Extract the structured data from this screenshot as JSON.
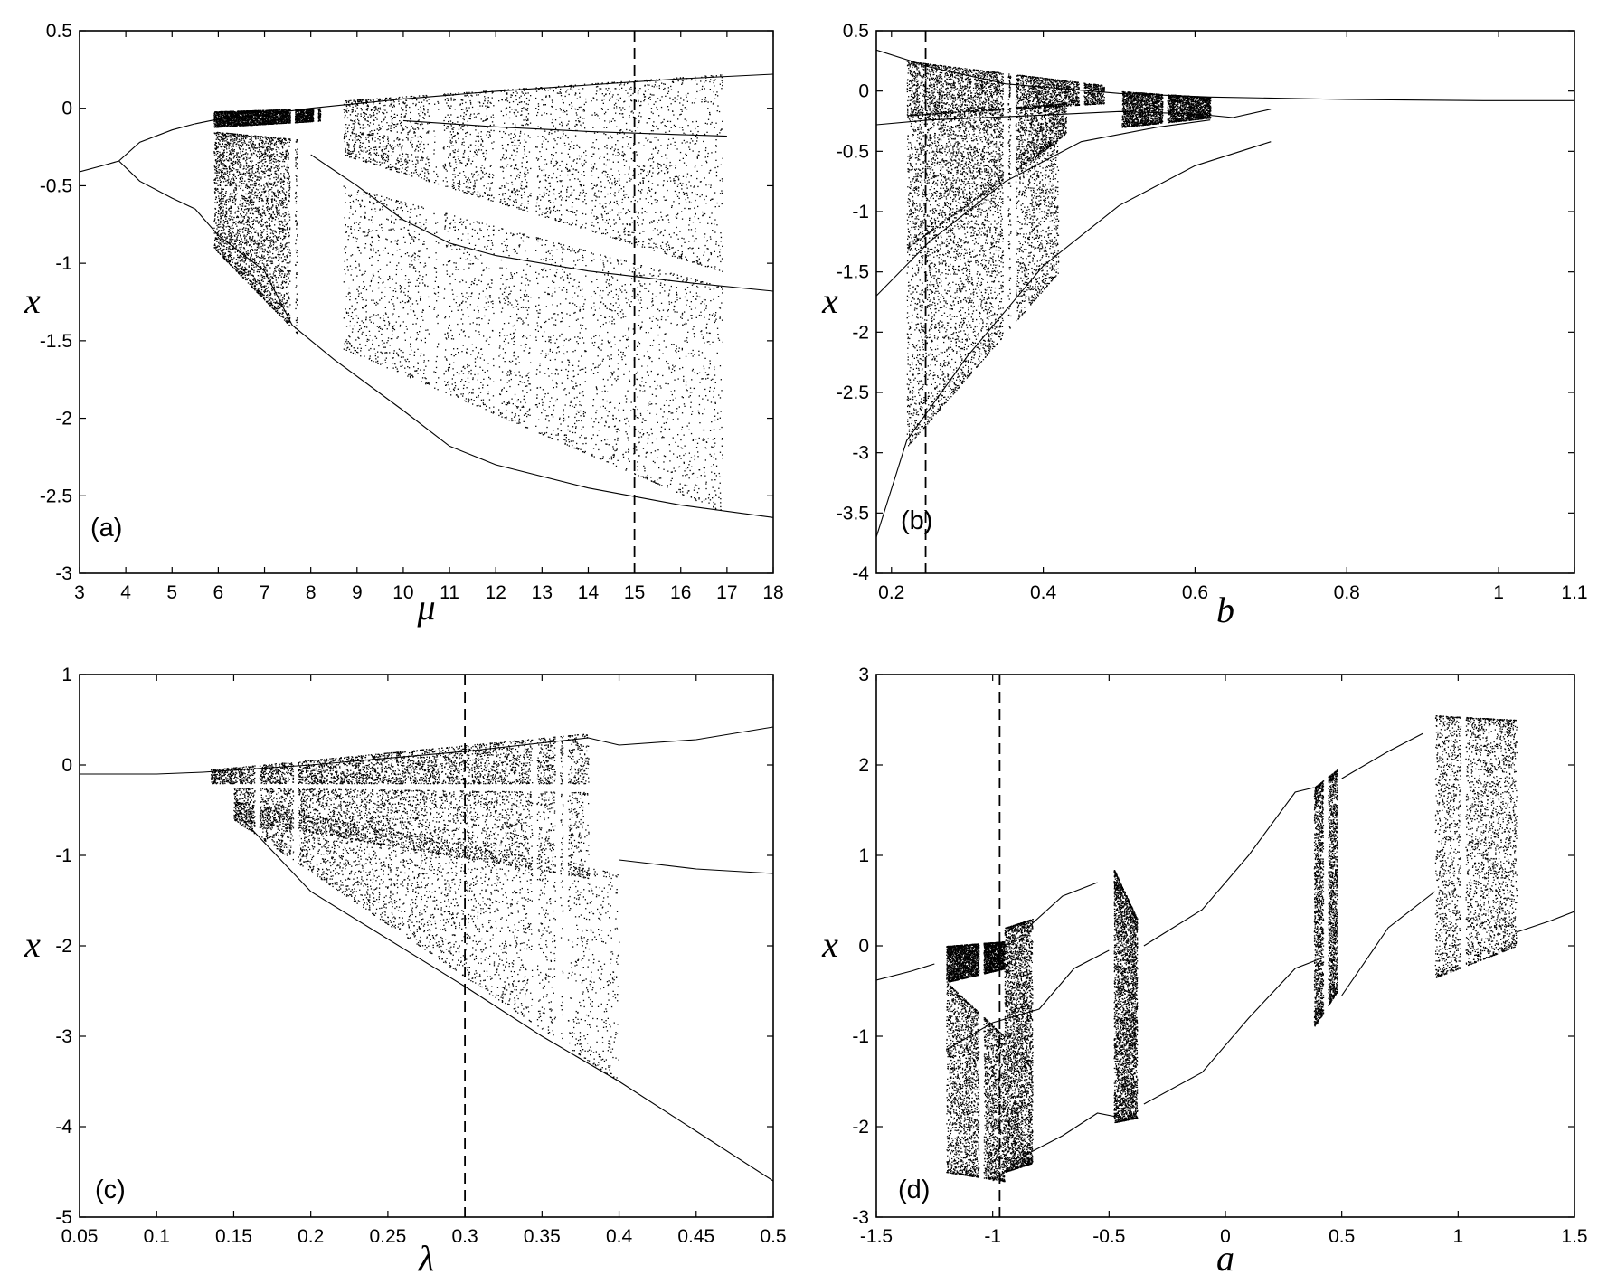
{
  "chart_data": [
    {
      "id": "a",
      "type": "scatter",
      "panel_label": "(a)",
      "xlabel": "μ",
      "ylabel": "x",
      "xlim": [
        3,
        18
      ],
      "ylim": [
        -3,
        0.5
      ],
      "xticks": [
        3,
        4,
        5,
        6,
        7,
        8,
        9,
        10,
        11,
        12,
        13,
        14,
        15,
        16,
        17,
        18
      ],
      "yticks": [
        0.5,
        0,
        -0.5,
        -1,
        -1.5,
        -2,
        -2.5,
        -3
      ],
      "xtick_labels": [
        "3",
        "4",
        "5",
        "6",
        "7",
        "8",
        "9",
        "10",
        "11",
        "12",
        "13",
        "14",
        "15",
        "16",
        "17",
        "18"
      ],
      "ytick_labels": [
        "0.5",
        "0",
        "-0.5",
        "-1",
        "-1.5",
        "-2",
        "-2.5",
        "-3"
      ],
      "dashed_line_x": 15,
      "chaos_range": [
        5.9,
        16.9
      ],
      "branches": [
        [
          [
            3,
            -0.41
          ],
          [
            3.5,
            -0.37
          ],
          [
            3.85,
            -0.34
          ]
        ],
        [
          [
            3.85,
            -0.34
          ],
          [
            4.3,
            -0.22
          ],
          [
            5,
            -0.14
          ],
          [
            5.5,
            -0.1
          ]
        ],
        [
          [
            3.85,
            -0.34
          ],
          [
            4.3,
            -0.47
          ],
          [
            5,
            -0.58
          ],
          [
            5.5,
            -0.65
          ]
        ],
        [
          [
            5.5,
            -0.1
          ],
          [
            6,
            -0.07
          ],
          [
            7,
            -0.04
          ],
          [
            8,
            0.0
          ],
          [
            10,
            0.06
          ],
          [
            12,
            0.11
          ],
          [
            14,
            0.15
          ],
          [
            16,
            0.19
          ],
          [
            18,
            0.22
          ]
        ],
        [
          [
            5.5,
            -0.65
          ],
          [
            6,
            -0.82
          ],
          [
            7,
            -1.05
          ],
          [
            7.6,
            -1.4
          ]
        ],
        [
          [
            8,
            -0.3
          ],
          [
            9,
            -0.5
          ],
          [
            10,
            -0.72
          ],
          [
            11,
            -0.87
          ],
          [
            12,
            -0.95
          ],
          [
            14,
            -1.05
          ],
          [
            16,
            -1.12
          ],
          [
            18,
            -1.18
          ]
        ],
        [
          [
            7.6,
            -1.4
          ],
          [
            8.5,
            -1.62
          ],
          [
            10,
            -1.95
          ],
          [
            11,
            -2.18
          ],
          [
            12,
            -2.3
          ],
          [
            14,
            -2.45
          ],
          [
            16,
            -2.56
          ],
          [
            18,
            -2.64
          ]
        ],
        [
          [
            10,
            -0.08
          ],
          [
            12,
            -0.12
          ],
          [
            14,
            -0.15
          ],
          [
            16,
            -0.17
          ],
          [
            17,
            -0.18
          ]
        ]
      ],
      "bands": [
        {
          "x": [
            5.9,
            8.2
          ],
          "ymin": [
            -0.12,
            -0.08
          ],
          "ymax": [
            -0.02,
            0.0
          ]
        },
        {
          "x": [
            5.9,
            7.7
          ],
          "ymin": [
            -0.9,
            -1.45
          ],
          "ymax": [
            -0.15,
            -0.2
          ]
        },
        {
          "x": [
            8.7,
            16.9
          ],
          "ymin": [
            -0.3,
            -1.05
          ],
          "ymax": [
            0.05,
            0.22
          ]
        },
        {
          "x": [
            8.7,
            16.9
          ],
          "ymin": [
            -1.55,
            -2.6
          ],
          "ymax": [
            -0.5,
            -1.15
          ]
        }
      ],
      "windows": [
        7.6,
        8.1,
        8.5,
        10.6,
        10.8,
        12.0,
        12.8,
        14.0
      ]
    },
    {
      "id": "b",
      "type": "scatter",
      "panel_label": "(b)",
      "xlabel": "b",
      "ylabel": "x",
      "xlim": [
        0.18,
        1.1
      ],
      "ylim": [
        -4,
        0.5
      ],
      "xticks": [
        0.2,
        0.4,
        0.6,
        0.8,
        1,
        1.1
      ],
      "yticks": [
        0.5,
        0,
        -0.5,
        -1,
        -1.5,
        -2,
        -2.5,
        -3,
        -3.5,
        -4
      ],
      "xtick_labels": [
        "0.2",
        "0.4",
        "0.6",
        "0.8",
        "1",
        "1.1"
      ],
      "ytick_labels": [
        "0.5",
        "0",
        "-0.5",
        "-1",
        "-1.5",
        "-2",
        "-2.5",
        "-3",
        "-3.5",
        "-4"
      ],
      "dashed_line_x": 0.245,
      "chaos_range": [
        0.22,
        0.62
      ],
      "branches": [
        [
          [
            0.18,
            0.34
          ],
          [
            0.25,
            0.2
          ],
          [
            0.35,
            0.06
          ],
          [
            0.5,
            -0.02
          ],
          [
            0.62,
            -0.05
          ],
          [
            0.8,
            -0.07
          ],
          [
            0.98,
            -0.08
          ],
          [
            1.1,
            -0.08
          ]
        ],
        [
          [
            0.18,
            -0.28
          ],
          [
            0.25,
            -0.24
          ],
          [
            0.4,
            -0.2
          ],
          [
            0.5,
            -0.17
          ],
          [
            0.6,
            -0.19
          ],
          [
            0.65,
            -0.22
          ],
          [
            0.7,
            -0.15
          ]
        ],
        [
          [
            0.18,
            -1.7
          ],
          [
            0.25,
            -1.25
          ],
          [
            0.35,
            -0.75
          ],
          [
            0.45,
            -0.42
          ],
          [
            0.55,
            -0.3
          ],
          [
            0.62,
            -0.24
          ]
        ],
        [
          [
            0.18,
            -3.7
          ],
          [
            0.22,
            -2.9
          ],
          [
            0.3,
            -2.2
          ],
          [
            0.4,
            -1.45
          ],
          [
            0.5,
            -0.95
          ],
          [
            0.6,
            -0.62
          ],
          [
            0.7,
            -0.42
          ]
        ]
      ],
      "bands": [
        {
          "x": [
            0.22,
            0.48
          ],
          "ymin": [
            -0.2,
            -0.1
          ],
          "ymax": [
            0.25,
            0.05
          ]
        },
        {
          "x": [
            0.22,
            0.43
          ],
          "ymin": [
            -1.3,
            -0.35
          ],
          "ymax": [
            -0.2,
            -0.1
          ]
        },
        {
          "x": [
            0.22,
            0.42
          ],
          "ymin": [
            -2.95,
            -1.5
          ],
          "ymax": [
            -1.3,
            -0.4
          ]
        },
        {
          "x": [
            0.5,
            0.62
          ],
          "ymin": [
            -0.3,
            -0.22
          ],
          "ymax": [
            0.0,
            -0.05
          ]
        }
      ],
      "windows": [
        0.35,
        0.36,
        0.45,
        0.5,
        0.56
      ]
    },
    {
      "id": "c",
      "type": "scatter",
      "panel_label": "(c)",
      "xlabel": "λ",
      "ylabel": "x",
      "xlim": [
        0.05,
        0.5
      ],
      "ylim": [
        -5,
        1
      ],
      "xticks": [
        0.05,
        0.1,
        0.15,
        0.2,
        0.25,
        0.3,
        0.35,
        0.4,
        0.45,
        0.5
      ],
      "yticks": [
        1,
        0,
        -1,
        -2,
        -3,
        -4,
        -5
      ],
      "xtick_labels": [
        "0.05",
        "0.1",
        "0.15",
        "0.2",
        "0.25",
        "0.3",
        "0.35",
        "0.4",
        "0.45",
        "0.5"
      ],
      "ytick_labels": [
        "1",
        "0",
        "-1",
        "-2",
        "-3",
        "-4",
        "-5"
      ],
      "dashed_line_x": 0.3,
      "chaos_range": [
        0.135,
        0.4
      ],
      "branches": [
        [
          [
            0.05,
            -0.1
          ],
          [
            0.1,
            -0.1
          ],
          [
            0.13,
            -0.08
          ]
        ],
        [
          [
            0.13,
            -0.08
          ],
          [
            0.2,
            0.0
          ],
          [
            0.3,
            0.15
          ],
          [
            0.38,
            0.3
          ],
          [
            0.4,
            0.22
          ],
          [
            0.45,
            0.28
          ],
          [
            0.5,
            0.42
          ]
        ],
        [
          [
            0.4,
            -1.05
          ],
          [
            0.45,
            -1.15
          ],
          [
            0.5,
            -1.2
          ]
        ],
        [
          [
            0.15,
            -0.5
          ],
          [
            0.2,
            -1.4
          ],
          [
            0.3,
            -2.45
          ],
          [
            0.35,
            -3.0
          ],
          [
            0.4,
            -3.5
          ],
          [
            0.45,
            -4.05
          ],
          [
            0.5,
            -4.6
          ]
        ]
      ],
      "bands": [
        {
          "x": [
            0.135,
            0.38
          ],
          "ymin": [
            -0.2,
            -0.2
          ],
          "ymax": [
            -0.05,
            0.35
          ]
        },
        {
          "x": [
            0.15,
            0.38
          ],
          "ymin": [
            -0.6,
            -1.25
          ],
          "ymax": [
            -0.25,
            -0.3
          ]
        },
        {
          "x": [
            0.15,
            0.4
          ],
          "ymin": [
            -0.6,
            -3.5
          ],
          "ymax": [
            -0.4,
            -1.2
          ]
        }
      ],
      "windows": [
        0.165,
        0.19,
        0.345,
        0.36,
        0.365
      ]
    },
    {
      "id": "d",
      "type": "scatter",
      "panel_label": "(d)",
      "xlabel": "a",
      "ylabel": "x",
      "xlim": [
        -1.5,
        1.5
      ],
      "ylim": [
        -3,
        3
      ],
      "xticks": [
        -1.5,
        -1,
        -0.5,
        0,
        0.5,
        1,
        1.5
      ],
      "yticks": [
        3,
        2,
        1,
        0,
        -1,
        -2,
        -3
      ],
      "xtick_labels": [
        "-1.5",
        "-1",
        "-0.5",
        "0",
        "0.5",
        "1",
        "1.5"
      ],
      "ytick_labels": [
        "3",
        "2",
        "1",
        "0",
        "-1",
        "-2",
        "-3"
      ],
      "dashed_line_x": -0.97,
      "chaos_range": [
        -1.2,
        1.25
      ],
      "branches": [
        [
          [
            -1.5,
            -0.38
          ],
          [
            -1.35,
            -0.28
          ],
          [
            -1.25,
            -0.2
          ]
        ],
        [
          [
            -1.2,
            -1.15
          ],
          [
            -1.0,
            -0.85
          ],
          [
            -0.8,
            -0.7
          ],
          [
            -0.65,
            -0.25
          ],
          [
            -0.5,
            -0.05
          ]
        ],
        [
          [
            -1.0,
            -2.6
          ],
          [
            -0.85,
            -2.3
          ],
          [
            -0.7,
            -2.1
          ],
          [
            -0.55,
            -1.85
          ],
          [
            -0.45,
            -1.9
          ]
        ],
        [
          [
            -0.85,
            0.2
          ],
          [
            -0.7,
            0.55
          ],
          [
            -0.55,
            0.7
          ]
        ],
        [
          [
            -0.35,
            0.0
          ],
          [
            -0.1,
            0.4
          ],
          [
            0.1,
            1.0
          ],
          [
            0.3,
            1.7
          ],
          [
            0.38,
            1.75
          ]
        ],
        [
          [
            -0.35,
            -1.75
          ],
          [
            -0.1,
            -1.4
          ],
          [
            0.1,
            -0.8
          ],
          [
            0.3,
            -0.25
          ],
          [
            0.4,
            -0.15
          ]
        ],
        [
          [
            0.5,
            1.85
          ],
          [
            0.7,
            2.15
          ],
          [
            0.85,
            2.35
          ]
        ],
        [
          [
            0.5,
            -0.55
          ],
          [
            0.7,
            0.2
          ],
          [
            0.9,
            0.6
          ]
        ],
        [
          [
            1.25,
            0.15
          ],
          [
            1.4,
            0.28
          ],
          [
            1.5,
            0.38
          ]
        ]
      ],
      "bands": [
        {
          "x": [
            -1.2,
            -0.95
          ],
          "ymin": [
            -0.4,
            -0.25
          ],
          "ymax": [
            0.0,
            0.05
          ]
        },
        {
          "x": [
            -1.2,
            -0.95
          ],
          "ymin": [
            -2.5,
            -2.6
          ],
          "ymax": [
            -0.4,
            -1.0
          ]
        },
        {
          "x": [
            -0.95,
            -0.83
          ],
          "ymin": [
            -2.5,
            -2.4
          ],
          "ymax": [
            0.2,
            0.3
          ]
        },
        {
          "x": [
            -0.48,
            -0.38
          ],
          "ymin": [
            -1.95,
            -1.9
          ],
          "ymax": [
            0.85,
            0.3
          ]
        },
        {
          "x": [
            0.38,
            0.48
          ],
          "ymin": [
            -0.9,
            -0.5
          ],
          "ymax": [
            1.75,
            1.95
          ]
        },
        {
          "x": [
            0.9,
            1.25
          ],
          "ymin": [
            -0.35,
            0.0
          ],
          "ymax": [
            2.55,
            2.5
          ]
        }
      ],
      "windows": [
        -1.05,
        -0.52,
        0.43,
        1.02
      ]
    }
  ]
}
